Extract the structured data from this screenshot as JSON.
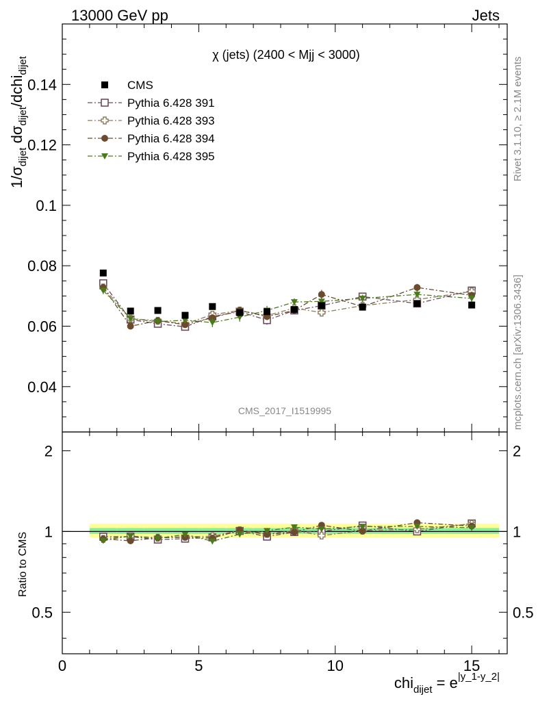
{
  "header": {
    "left": "13000 GeV pp",
    "right": "Jets"
  },
  "main_panel": {
    "title": "χ (jets) (2400 < Mjj < 3000)",
    "y_label_parts": [
      "1/σ",
      "dijet",
      " dσ",
      "dijet",
      "/dchi",
      "dijet"
    ],
    "watermark": "CMS_2017_I1519995"
  },
  "ratio_panel": {
    "y_label": "Ratio to CMS"
  },
  "x_label_parts": [
    "chi",
    "dijet",
    " = e",
    "|y_1-y_2|"
  ],
  "side_labels": {
    "rivet": "Rivet 3.1.10, ≥ 2.1M events",
    "mcplots": "mcplots.cern.ch [arXiv:1306.3436]"
  },
  "chart_data": {
    "type": "scatter",
    "xlim": [
      0,
      16.3
    ],
    "ylim": [
      0.025,
      0.16
    ],
    "ratio_ylim": [
      0.35,
      2.35
    ],
    "x_ticks": [
      0,
      5,
      10,
      15
    ],
    "y_ticks": [
      0.04,
      0.06,
      0.08,
      0.1,
      0.12,
      0.14
    ],
    "y_tick_labels": [
      "0.04",
      "0.06",
      "0.08",
      "0.1",
      "0.12",
      "0.14"
    ],
    "ratio_ticks": [
      0.5,
      1,
      2
    ],
    "ratio_tick_labels": [
      "0.5",
      "1",
      "2"
    ],
    "bins": [
      [
        1,
        2
      ],
      [
        2,
        3
      ],
      [
        3,
        4
      ],
      [
        4,
        5
      ],
      [
        5,
        6
      ],
      [
        6,
        7
      ],
      [
        7,
        8
      ],
      [
        8,
        9
      ],
      [
        9,
        10
      ],
      [
        10,
        12
      ],
      [
        12,
        14
      ],
      [
        14,
        16
      ]
    ],
    "x": [
      1.5,
      2.5,
      3.5,
      4.5,
      5.5,
      6.5,
      7.5,
      8.5,
      9.5,
      11,
      13,
      15
    ],
    "data": {
      "name": "CMS",
      "values": [
        0.0776,
        0.065,
        0.0652,
        0.0636,
        0.0665,
        0.0645,
        0.0648,
        0.0655,
        0.0668,
        0.0663,
        0.0675,
        0.067
      ],
      "color": "#000000"
    },
    "ratio_band": {
      "inner": [
        [
          0.98,
          1.03
        ],
        [
          0.98,
          1.03
        ],
        [
          0.98,
          1.03
        ],
        [
          0.98,
          1.03
        ],
        [
          0.98,
          1.03
        ],
        [
          0.98,
          1.03
        ],
        [
          0.98,
          1.03
        ],
        [
          0.98,
          1.03
        ],
        [
          0.98,
          1.03
        ],
        [
          0.98,
          1.03
        ],
        [
          0.98,
          1.03
        ],
        [
          0.98,
          1.03
        ]
      ],
      "outer": [
        [
          0.95,
          1.07
        ],
        [
          0.95,
          1.07
        ],
        [
          0.95,
          1.07
        ],
        [
          0.95,
          1.07
        ],
        [
          0.95,
          1.07
        ],
        [
          0.95,
          1.07
        ],
        [
          0.95,
          1.07
        ],
        [
          0.95,
          1.07
        ],
        [
          0.95,
          1.07
        ],
        [
          0.95,
          1.07
        ],
        [
          0.95,
          1.07
        ],
        [
          0.95,
          1.07
        ]
      ],
      "inner_color": "#88ee99",
      "outer_color": "#ffff99"
    },
    "series": [
      {
        "name": "Pythia 6.428 391",
        "marker": "open-square",
        "color": "#6b4a5e",
        "values": [
          0.0742,
          0.0622,
          0.0608,
          0.0598,
          0.0632,
          0.0648,
          0.062,
          0.0652,
          0.0668,
          0.0698,
          0.0675,
          0.0718
        ],
        "errors": [
          0.0012,
          0.001,
          0.001,
          0.001,
          0.001,
          0.001,
          0.0015,
          0.0012,
          0.0012,
          0.0012,
          0.0012,
          0.0012
        ]
      },
      {
        "name": "Pythia 6.428 393",
        "marker": "open-cross",
        "color": "#8b7a5a",
        "values": [
          0.0728,
          0.0625,
          0.0618,
          0.0608,
          0.0638,
          0.0652,
          0.0635,
          0.066,
          0.0645,
          0.0668,
          0.0688,
          0.0715
        ],
        "errors": [
          0.0012,
          0.001,
          0.001,
          0.001,
          0.001,
          0.0012,
          0.0012,
          0.0012,
          0.0012,
          0.0012,
          0.0012,
          0.0012
        ]
      },
      {
        "name": "Pythia 6.428 394",
        "marker": "filled-circle",
        "color": "#6b4a2e",
        "values": [
          0.0728,
          0.06,
          0.0618,
          0.0605,
          0.0628,
          0.0652,
          0.0632,
          0.0652,
          0.0705,
          0.0665,
          0.0728,
          0.0702
        ],
        "errors": [
          0.0012,
          0.001,
          0.001,
          0.001,
          0.001,
          0.0012,
          0.0012,
          0.0012,
          0.0015,
          0.0012,
          0.0012,
          0.0012
        ]
      },
      {
        "name": "Pythia 6.428 395",
        "marker": "filled-triangle-down",
        "color": "#4a7a1a",
        "values": [
          0.0718,
          0.0625,
          0.0615,
          0.062,
          0.0612,
          0.063,
          0.0652,
          0.068,
          0.0682,
          0.0692,
          0.0705,
          0.0692
        ],
        "errors": [
          0.0012,
          0.001,
          0.001,
          0.001,
          0.0015,
          0.0015,
          0.0015,
          0.0012,
          0.0012,
          0.0012,
          0.0012,
          0.0012
        ]
      }
    ]
  }
}
